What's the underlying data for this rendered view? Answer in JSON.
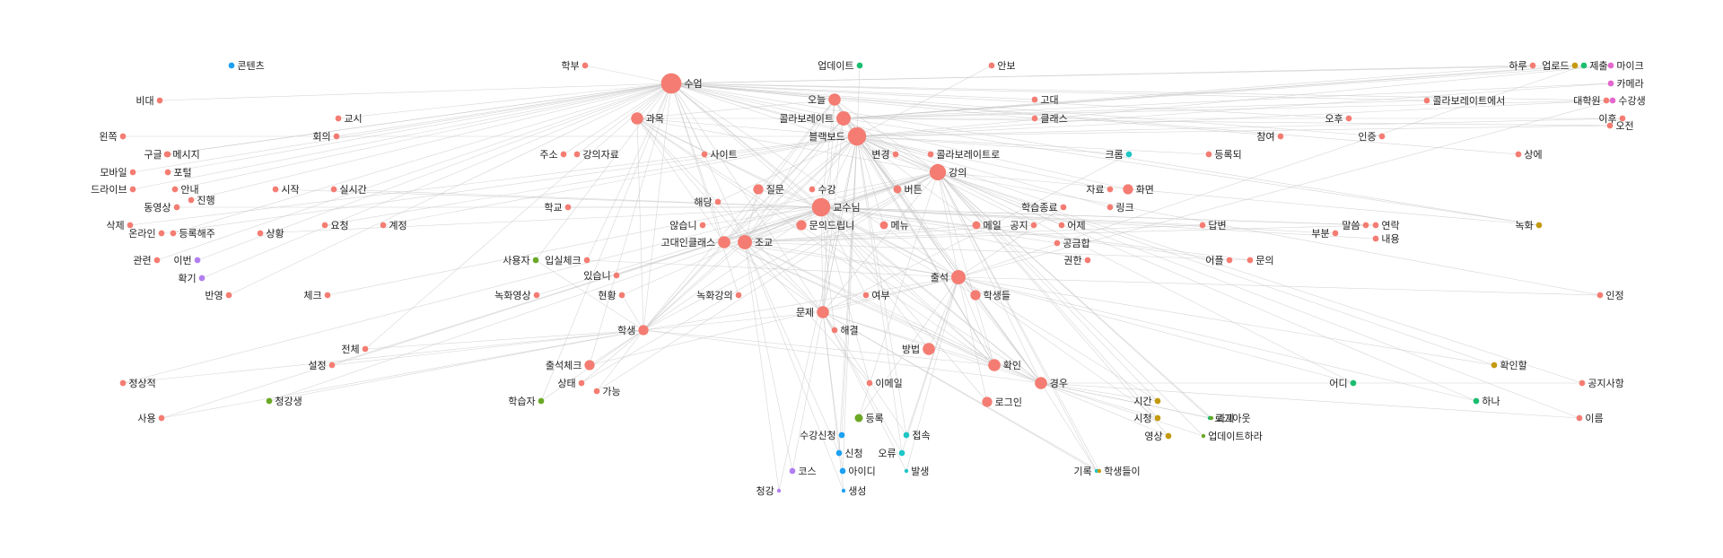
{
  "colors": {
    "salmon": "#f47c72",
    "blue": "#1ca0f2",
    "teal": "#1ec6c6",
    "green": "#1abe6e",
    "olive": "#6aa825",
    "gold": "#c39a0e",
    "purple": "#b27ff0",
    "pink": "#e467cd",
    "edge": "#c8c8c8"
  },
  "nodes": [
    {
      "id": "수업",
      "label": "수업",
      "weight": 9,
      "group": "salmon"
    },
    {
      "id": "교수님",
      "label": "교수님",
      "weight": 8,
      "group": "salmon"
    },
    {
      "id": "블랙보드",
      "label": "블랙보드",
      "weight": 8,
      "group": "salmon"
    },
    {
      "id": "강의",
      "label": "강의",
      "weight": 7,
      "group": "salmon"
    },
    {
      "id": "콜라보레이트",
      "label": "콜라보레이트",
      "weight": 6,
      "group": "salmon"
    },
    {
      "id": "오늘",
      "label": "오늘",
      "weight": 5,
      "group": "salmon"
    },
    {
      "id": "출석",
      "label": "출석",
      "weight": 6,
      "group": "salmon"
    },
    {
      "id": "조교",
      "label": "조교",
      "weight": 6,
      "group": "salmon"
    },
    {
      "id": "고대인클래스",
      "label": "고대인클래스",
      "weight": 5,
      "group": "salmon"
    },
    {
      "id": "과목",
      "label": "과목",
      "weight": 5,
      "group": "salmon"
    },
    {
      "id": "문제",
      "label": "문제",
      "weight": 5,
      "group": "salmon"
    },
    {
      "id": "학생",
      "label": "학생",
      "weight": 4,
      "group": "salmon"
    },
    {
      "id": "확인",
      "label": "확인",
      "weight": 5,
      "group": "salmon"
    },
    {
      "id": "경우",
      "label": "경우",
      "weight": 5,
      "group": "salmon"
    },
    {
      "id": "방법",
      "label": "방법",
      "weight": 5,
      "group": "salmon"
    },
    {
      "id": "학생들",
      "label": "학생들",
      "weight": 4,
      "group": "salmon"
    },
    {
      "id": "질문",
      "label": "질문",
      "weight": 4,
      "group": "salmon"
    },
    {
      "id": "로그인",
      "label": "로그인",
      "weight": 4,
      "group": "salmon"
    },
    {
      "id": "출석체크",
      "label": "출석체크",
      "weight": 4,
      "group": "salmon"
    },
    {
      "id": "화면",
      "label": "화면",
      "weight": 4,
      "group": "salmon"
    },
    {
      "id": "문의드립니",
      "label": "문의드립니",
      "weight": 4,
      "group": "salmon"
    },
    {
      "id": "메뉴",
      "label": "메뉴",
      "weight": 3,
      "group": "salmon"
    },
    {
      "id": "메일",
      "label": "메일",
      "weight": 3,
      "group": "salmon"
    },
    {
      "id": "버튼",
      "label": "버튼",
      "weight": 3,
      "group": "salmon"
    },
    {
      "id": "학부",
      "label": "학부",
      "weight": 2,
      "group": "salmon"
    },
    {
      "id": "안보",
      "label": "안보",
      "weight": 2,
      "group": "salmon"
    },
    {
      "id": "고대",
      "label": "고대",
      "weight": 2,
      "group": "salmon"
    },
    {
      "id": "클래스",
      "label": "클래스",
      "weight": 2,
      "group": "salmon"
    },
    {
      "id": "비대",
      "label": "비대",
      "weight": 2,
      "group": "salmon"
    },
    {
      "id": "콜라보레이트로",
      "label": "콜라보레이트로",
      "weight": 2,
      "group": "salmon"
    },
    {
      "id": "콜라보레이트에서",
      "label": "콜라보레이트에서",
      "weight": 2,
      "group": "salmon"
    },
    {
      "id": "하루",
      "label": "하루",
      "weight": 2,
      "group": "salmon"
    },
    {
      "id": "대학원",
      "label": "대학원",
      "weight": 2,
      "group": "salmon"
    },
    {
      "id": "이후",
      "label": "이후",
      "weight": 2,
      "group": "salmon"
    },
    {
      "id": "오전",
      "label": "오전",
      "weight": 2,
      "group": "salmon"
    },
    {
      "id": "오후",
      "label": "오후",
      "weight": 2,
      "group": "salmon"
    },
    {
      "id": "참여",
      "label": "참여",
      "weight": 2,
      "group": "salmon"
    },
    {
      "id": "인증",
      "label": "인증",
      "weight": 2,
      "group": "salmon"
    },
    {
      "id": "상에",
      "label": "상에",
      "weight": 2,
      "group": "salmon"
    },
    {
      "id": "교시",
      "label": "교시",
      "weight": 2,
      "group": "salmon"
    },
    {
      "id": "회의",
      "label": "회의",
      "weight": 2,
      "group": "salmon"
    },
    {
      "id": "왼쪽",
      "label": "왼쪽",
      "weight": 2,
      "group": "salmon"
    },
    {
      "id": "구글",
      "label": "구글",
      "weight": 2,
      "group": "salmon"
    },
    {
      "id": "메시지",
      "label": "메시지",
      "weight": 2,
      "group": "salmon"
    },
    {
      "id": "모바일",
      "label": "모바일",
      "weight": 2,
      "group": "salmon"
    },
    {
      "id": "포털",
      "label": "포털",
      "weight": 2,
      "group": "salmon"
    },
    {
      "id": "드라이브",
      "label": "드라이브",
      "weight": 2,
      "group": "salmon"
    },
    {
      "id": "안내",
      "label": "안내",
      "weight": 2,
      "group": "salmon"
    },
    {
      "id": "진행",
      "label": "진행",
      "weight": 2,
      "group": "salmon"
    },
    {
      "id": "시작",
      "label": "시작",
      "weight": 2,
      "group": "salmon"
    },
    {
      "id": "실시간",
      "label": "실시간",
      "weight": 2,
      "group": "salmon"
    },
    {
      "id": "동영상",
      "label": "동영상",
      "weight": 2,
      "group": "salmon"
    },
    {
      "id": "주소",
      "label": "주소",
      "weight": 2,
      "group": "salmon"
    },
    {
      "id": "강의자료",
      "label": "강의자료",
      "weight": 2,
      "group": "salmon"
    },
    {
      "id": "사이트",
      "label": "사이트",
      "weight": 2,
      "group": "salmon"
    },
    {
      "id": "변경",
      "label": "변경",
      "weight": 2,
      "group": "salmon"
    },
    {
      "id": "등록되",
      "label": "등록되",
      "weight": 2,
      "group": "salmon"
    },
    {
      "id": "자료",
      "label": "자료",
      "weight": 2,
      "group": "salmon"
    },
    {
      "id": "링크",
      "label": "링크",
      "weight": 2,
      "group": "salmon"
    },
    {
      "id": "해당",
      "label": "해당",
      "weight": 2,
      "group": "salmon"
    },
    {
      "id": "수강",
      "label": "수강",
      "weight": 2,
      "group": "salmon"
    },
    {
      "id": "학교",
      "label": "학교",
      "weight": 2,
      "group": "salmon"
    },
    {
      "id": "학습종료",
      "label": "학습종료",
      "weight": 2,
      "group": "salmon"
    },
    {
      "id": "삭제",
      "label": "삭제",
      "weight": 2,
      "group": "salmon"
    },
    {
      "id": "온라인",
      "label": "온라인",
      "weight": 2,
      "group": "salmon"
    },
    {
      "id": "등록해주",
      "label": "등록해주",
      "weight": 2,
      "group": "salmon"
    },
    {
      "id": "상황",
      "label": "상황",
      "weight": 2,
      "group": "salmon"
    },
    {
      "id": "요청",
      "label": "요청",
      "weight": 2,
      "group": "salmon"
    },
    {
      "id": "계정",
      "label": "계정",
      "weight": 2,
      "group": "salmon"
    },
    {
      "id": "않습니",
      "label": "않습니",
      "weight": 2,
      "group": "salmon"
    },
    {
      "id": "공지",
      "label": "공지",
      "weight": 2,
      "group": "salmon"
    },
    {
      "id": "어제",
      "label": "어제",
      "weight": 2,
      "group": "salmon"
    },
    {
      "id": "공금합",
      "label": "공금합",
      "weight": 2,
      "group": "salmon"
    },
    {
      "id": "답변",
      "label": "답변",
      "weight": 2,
      "group": "salmon"
    },
    {
      "id": "말씀",
      "label": "말씀",
      "weight": 2,
      "group": "salmon"
    },
    {
      "id": "연락",
      "label": "연락",
      "weight": 2,
      "group": "salmon"
    },
    {
      "id": "부분",
      "label": "부분",
      "weight": 2,
      "group": "salmon"
    },
    {
      "id": "내용",
      "label": "내용",
      "weight": 2,
      "group": "salmon"
    },
    {
      "id": "관련",
      "label": "관련",
      "weight": 2,
      "group": "salmon"
    },
    {
      "id": "입실체크",
      "label": "입실체크",
      "weight": 2,
      "group": "salmon"
    },
    {
      "id": "있습니",
      "label": "있습니",
      "weight": 2,
      "group": "salmon"
    },
    {
      "id": "권한",
      "label": "권한",
      "weight": 2,
      "group": "salmon"
    },
    {
      "id": "어플",
      "label": "어플",
      "weight": 2,
      "group": "salmon"
    },
    {
      "id": "문의",
      "label": "문의",
      "weight": 2,
      "group": "salmon"
    },
    {
      "id": "반영",
      "label": "반영",
      "weight": 2,
      "group": "salmon"
    },
    {
      "id": "체크",
      "label": "체크",
      "weight": 2,
      "group": "salmon"
    },
    {
      "id": "녹화영상",
      "label": "녹화영상",
      "weight": 2,
      "group": "salmon"
    },
    {
      "id": "현황",
      "label": "현황",
      "weight": 2,
      "group": "salmon"
    },
    {
      "id": "녹화강의",
      "label": "녹화강의",
      "weight": 2,
      "group": "salmon"
    },
    {
      "id": "여부",
      "label": "여부",
      "weight": 2,
      "group": "salmon"
    },
    {
      "id": "해결",
      "label": "해결",
      "weight": 2,
      "group": "salmon"
    },
    {
      "id": "인정",
      "label": "인정",
      "weight": 2,
      "group": "salmon"
    },
    {
      "id": "전체",
      "label": "전체",
      "weight": 2,
      "group": "salmon"
    },
    {
      "id": "설정",
      "label": "설정",
      "weight": 2,
      "group": "salmon"
    },
    {
      "id": "정상적",
      "label": "정상적",
      "weight": 2,
      "group": "salmon"
    },
    {
      "id": "상태",
      "label": "상태",
      "weight": 2,
      "group": "salmon"
    },
    {
      "id": "가능",
      "label": "가능",
      "weight": 2,
      "group": "salmon"
    },
    {
      "id": "이메일",
      "label": "이메일",
      "weight": 2,
      "group": "salmon"
    },
    {
      "id": "공지사항",
      "label": "공지사항",
      "weight": 2,
      "group": "salmon"
    },
    {
      "id": "이름",
      "label": "이름",
      "weight": 2,
      "group": "salmon"
    },
    {
      "id": "사용",
      "label": "사용",
      "weight": 2,
      "group": "salmon"
    },
    {
      "id": "콘텐츠",
      "label": "콘텐츠",
      "weight": 2,
      "group": "blue"
    },
    {
      "id": "수강신청",
      "label": "수강신청",
      "weight": 2,
      "group": "blue"
    },
    {
      "id": "신청",
      "label": "신청",
      "weight": 2,
      "group": "blue"
    },
    {
      "id": "아이디",
      "label": "아이디",
      "weight": 2,
      "group": "blue"
    },
    {
      "id": "생성",
      "label": "생성",
      "weight": 1,
      "group": "blue"
    },
    {
      "id": "업데이트",
      "label": "업데이트",
      "weight": 2,
      "group": "green"
    },
    {
      "id": "하나",
      "label": "하나",
      "weight": 2,
      "group": "green"
    },
    {
      "id": "어디",
      "label": "어디",
      "weight": 2,
      "group": "green"
    },
    {
      "id": "로그아웃",
      "label": "로그아웃",
      "weight": 1,
      "group": "green"
    },
    {
      "id": "크롬",
      "label": "크롬",
      "weight": 2,
      "group": "teal"
    },
    {
      "id": "오류",
      "label": "오류",
      "weight": 2,
      "group": "teal"
    },
    {
      "id": "접속",
      "label": "접속",
      "weight": 2,
      "group": "teal"
    },
    {
      "id": "발생",
      "label": "발생",
      "weight": 1,
      "group": "teal"
    },
    {
      "id": "기록",
      "label": "기록",
      "weight": 1,
      "group": "teal"
    },
    {
      "id": "등록",
      "label": "등록",
      "weight": 3,
      "group": "olive"
    },
    {
      "id": "사용자",
      "label": "사용자",
      "weight": 2,
      "group": "olive"
    },
    {
      "id": "청강생",
      "label": "청강생",
      "weight": 2,
      "group": "olive"
    },
    {
      "id": "학습자",
      "label": "학습자",
      "weight": 2,
      "group": "olive"
    },
    {
      "id": "과제",
      "label": "과제",
      "weight": 1,
      "group": "olive"
    },
    {
      "id": "업데이트하라",
      "label": "업데이트하라",
      "weight": 1,
      "group": "olive"
    },
    {
      "id": "업로드",
      "label": "업로드",
      "weight": 2,
      "group": "gold"
    },
    {
      "id": "녹화",
      "label": "녹화",
      "weight": 2,
      "group": "gold"
    },
    {
      "id": "확인할",
      "label": "확인할",
      "weight": 2,
      "group": "gold"
    },
    {
      "id": "시간",
      "label": "시간",
      "weight": 2,
      "group": "gold"
    },
    {
      "id": "시청",
      "label": "시청",
      "weight": 2,
      "group": "gold"
    },
    {
      "id": "영상",
      "label": "영상",
      "weight": 2,
      "group": "gold"
    },
    {
      "id": "학생들이",
      "label": "학생들이",
      "weight": 1,
      "group": "gold"
    },
    {
      "id": "제출",
      "label": "제출",
      "weight": 2,
      "group": "green"
    },
    {
      "id": "마이크",
      "label": "마이크",
      "weight": 2,
      "group": "pink"
    },
    {
      "id": "카메라",
      "label": "카메라",
      "weight": 2,
      "group": "pink"
    },
    {
      "id": "수강생",
      "label": "수강생",
      "weight": 2,
      "group": "pink"
    },
    {
      "id": "이번",
      "label": "이번",
      "weight": 2,
      "group": "purple"
    },
    {
      "id": "확기",
      "label": "확기",
      "weight": 2,
      "group": "purple"
    },
    {
      "id": "코스",
      "label": "코스",
      "weight": 2,
      "group": "purple"
    },
    {
      "id": "청강",
      "label": "청강",
      "weight": 1,
      "group": "purple"
    }
  ]
}
